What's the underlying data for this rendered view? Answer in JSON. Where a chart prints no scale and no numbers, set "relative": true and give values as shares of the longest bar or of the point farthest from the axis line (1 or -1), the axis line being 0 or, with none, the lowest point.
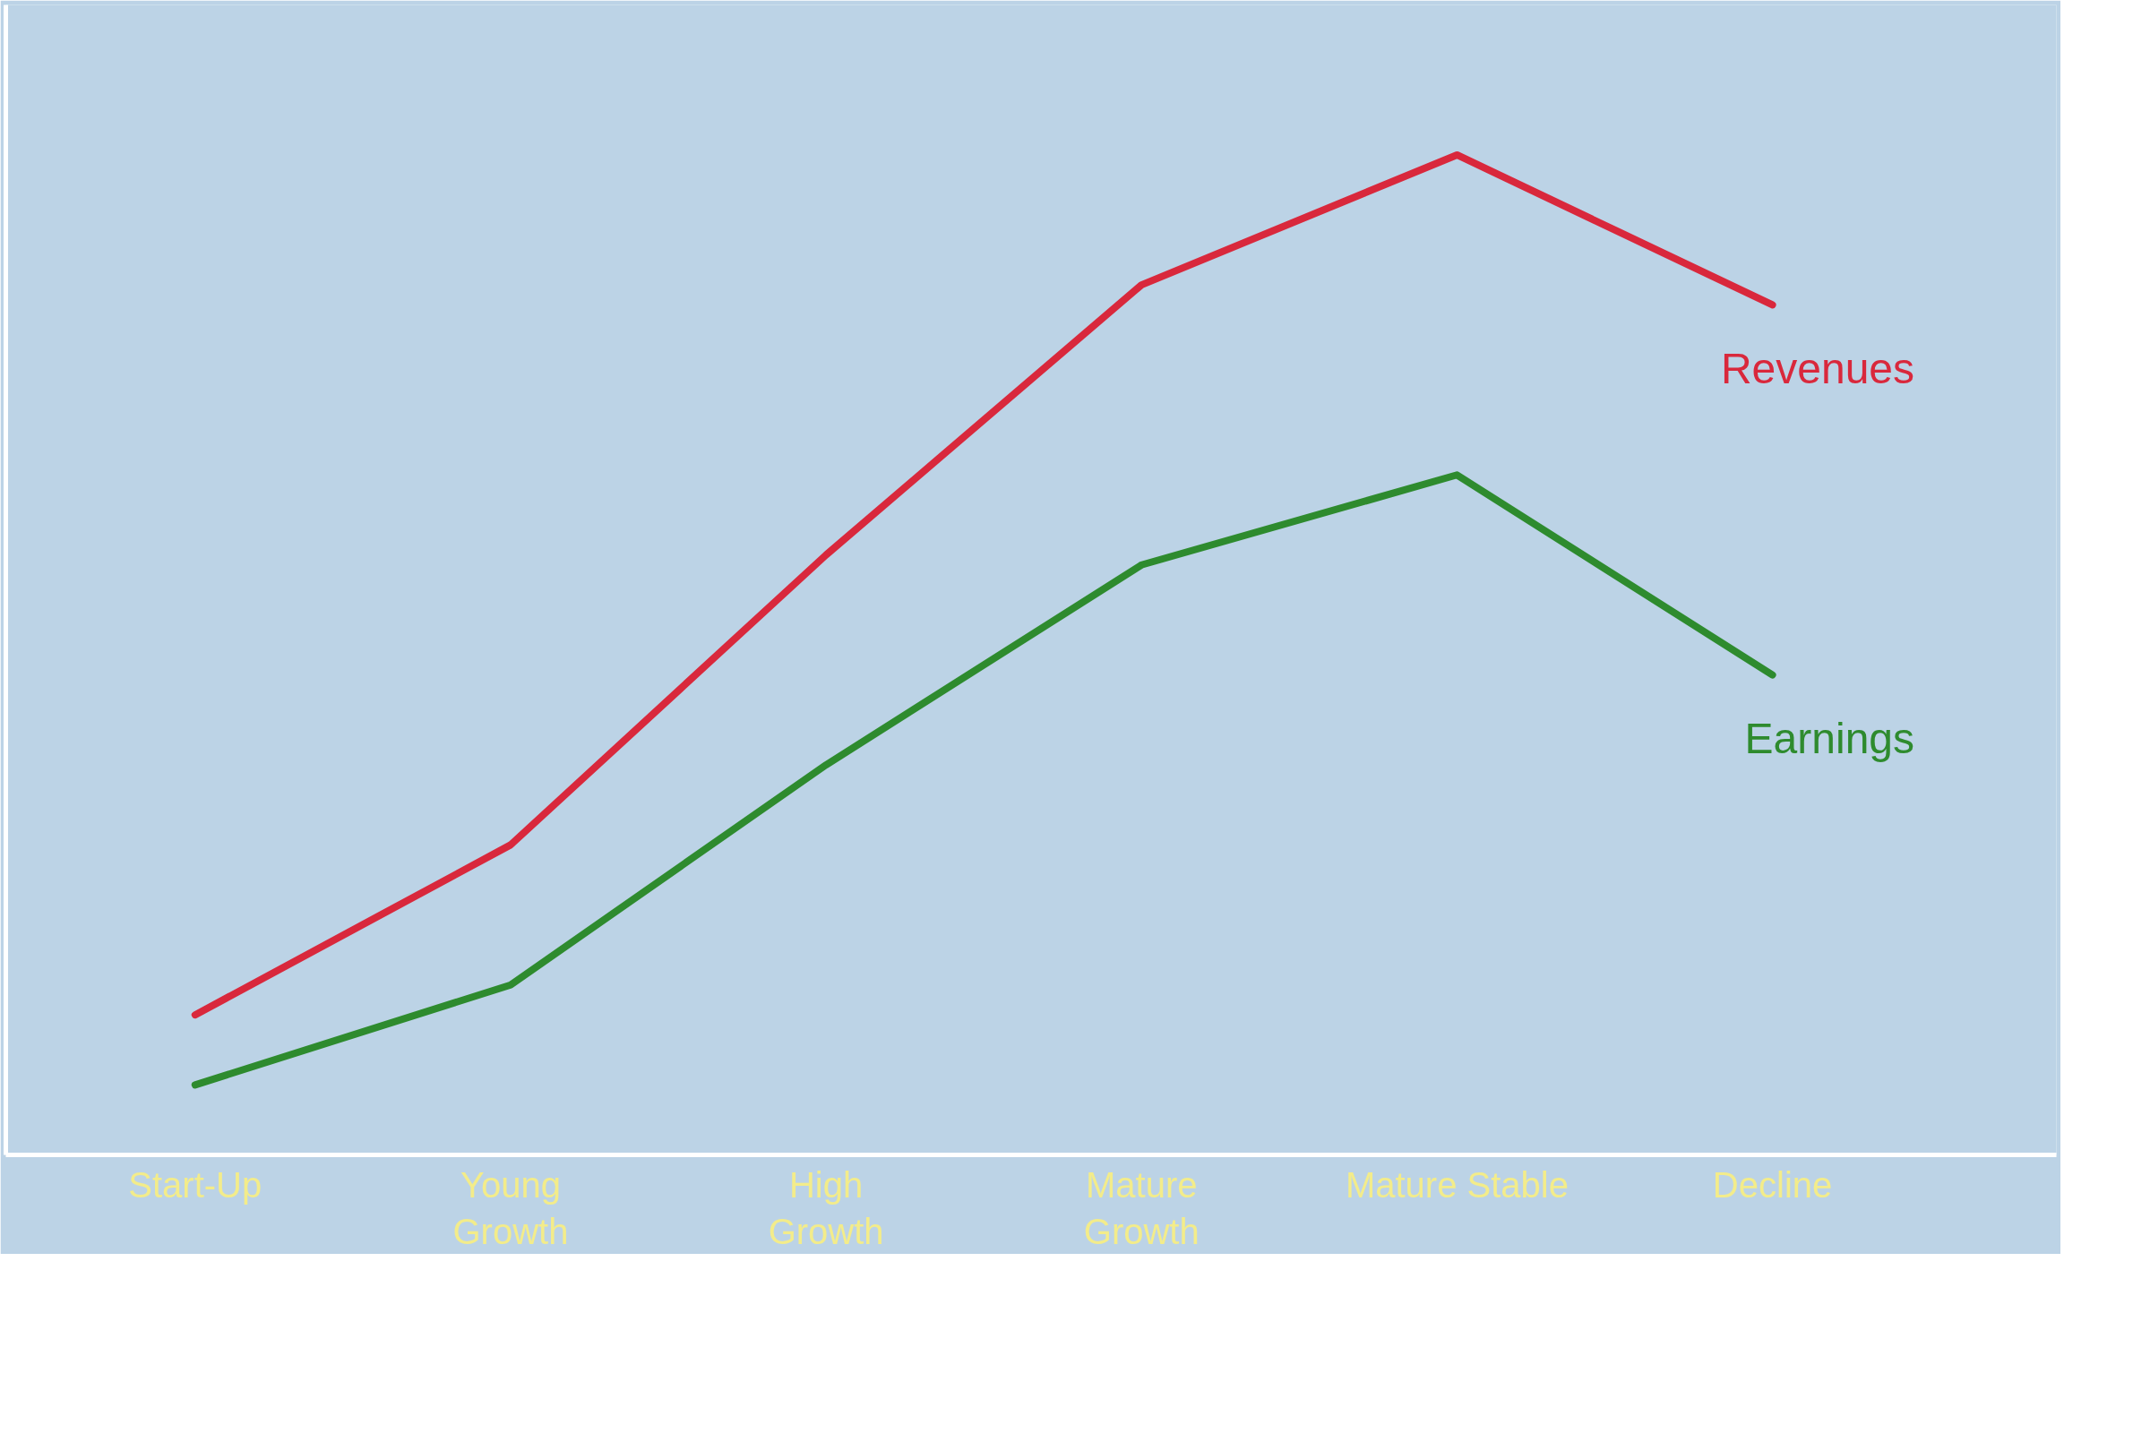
{
  "chart_data": {
    "type": "line",
    "relative": true,
    "legend": false,
    "grid": false,
    "marker": "none",
    "line_style": "solid",
    "categories": [
      "Start-Up",
      "Young\nGrowth",
      "High\nGrowth",
      "Mature\nGrowth",
      "Mature Stable",
      "Decline"
    ],
    "series": [
      {
        "name": "Revenues",
        "color": "#d9283c",
        "values": [
          0.14,
          0.31,
          0.6,
          0.87,
          1.0,
          0.85
        ]
      },
      {
        "name": "Earnings",
        "color": "#2e8b2e",
        "values": [
          0.07,
          0.17,
          0.39,
          0.59,
          0.68,
          0.48
        ]
      }
    ]
  }
}
